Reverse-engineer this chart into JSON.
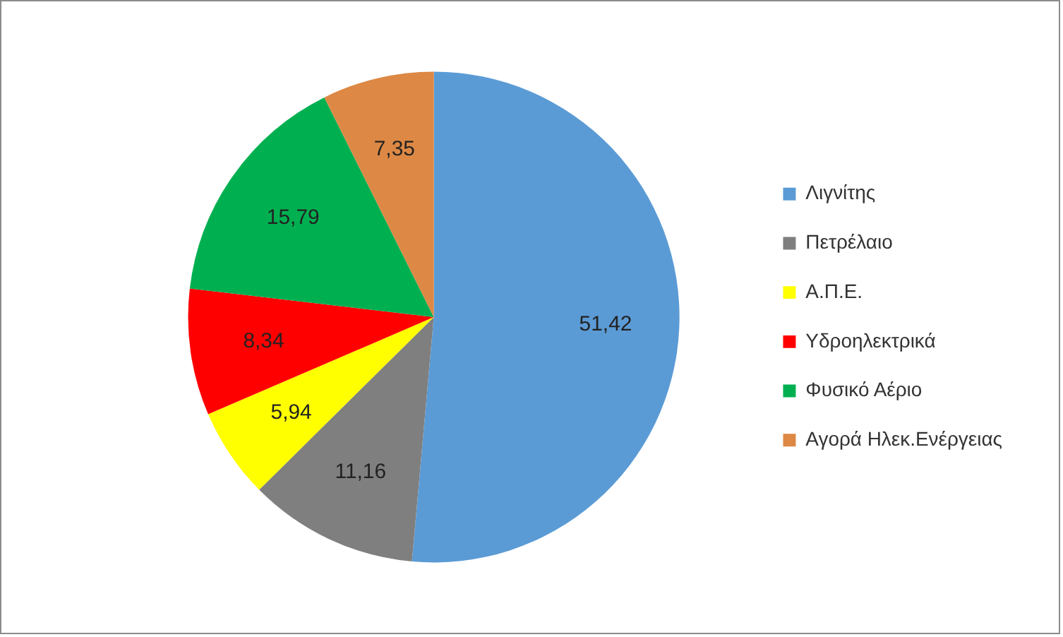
{
  "chart_data": {
    "type": "pie",
    "categories": [
      "Λιγνίτης",
      "Πετρέλαιο",
      "Α.Π.Ε.",
      "Υδροηλεκτρικά",
      "Φυσικό Αέριο",
      "Αγορά Ηλεκ.Ενέργειας"
    ],
    "values": [
      51.42,
      11.16,
      5.94,
      8.34,
      15.79,
      7.35
    ],
    "value_labels": [
      "51,42",
      "11,16",
      "5,94",
      "8,34",
      "15,79",
      "7,35"
    ],
    "colors": [
      "#5b9bd5",
      "#7f7f7f",
      "#ffff00",
      "#ff0000",
      "#00b050",
      "#dd8844"
    ],
    "legend": "right"
  }
}
